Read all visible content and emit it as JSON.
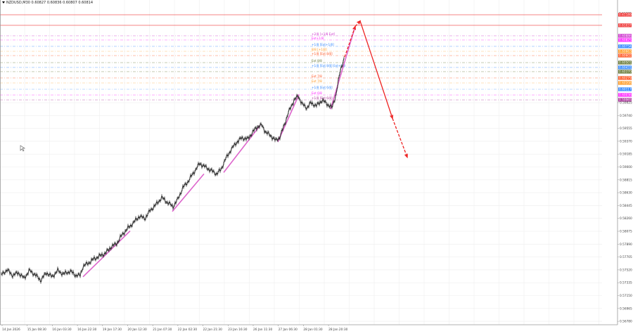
{
  "window": {
    "symbol_line": "NZDUSD,M30  0.60827 0.60836 0.60807 0.60814"
  },
  "colors": {
    "candle": "#222222",
    "grid": "#eeeeee",
    "axis": "#999999",
    "trend_purple": "#dd66cc",
    "arrow_red": "#ee2222"
  },
  "chart_data": {
    "type": "candlestick",
    "title": "NZDUSD,M30",
    "symbol": "NZDUSD",
    "timeframe": "M30",
    "ohlc_header": {
      "open": 0.60827,
      "high": 0.60836,
      "low": 0.60807,
      "close": 0.60814
    },
    "ylim": [
      0.5669,
      0.6125
    ],
    "y_ticks": [
      "0.59925",
      "0.59740",
      "0.59555",
      "0.59370",
      "0.59185",
      "0.59000",
      "0.58815",
      "0.58630",
      "0.58445",
      "0.58260",
      "0.58075",
      "0.57890",
      "0.57705",
      "0.57520",
      "0.57335",
      "0.57150",
      "0.56965",
      "0.56780"
    ],
    "x_ticks": [
      "14 Jan 2026",
      "15 Jan 08:30",
      "16 Jan 03:30",
      "16 Jan 22:30",
      "19 Jan 17:30",
      "20 Jan 12:30",
      "21 Jan 07:30",
      "22 Jan 02:30",
      "22 Jan 21:30",
      "23 Jan 16:30",
      "26 Jan 11:30",
      "27 Jan 06:30",
      "28 Jan 01:30",
      "28 Jan 20:30"
    ],
    "price_path": [
      [
        2,
        0.5745
      ],
      [
        10,
        0.5752
      ],
      [
        18,
        0.5744
      ],
      [
        26,
        0.5748
      ],
      [
        34,
        0.574
      ],
      [
        42,
        0.5751
      ],
      [
        50,
        0.5745
      ],
      [
        58,
        0.5737
      ],
      [
        66,
        0.5748
      ],
      [
        74,
        0.5742
      ],
      [
        82,
        0.5751
      ],
      [
        90,
        0.5746
      ],
      [
        100,
        0.575
      ],
      [
        108,
        0.5744
      ],
      [
        114,
        0.5744
      ],
      [
        118,
        0.5757
      ],
      [
        126,
        0.5762
      ],
      [
        134,
        0.5768
      ],
      [
        142,
        0.5772
      ],
      [
        150,
        0.5776
      ],
      [
        158,
        0.5785
      ],
      [
        166,
        0.579
      ],
      [
        174,
        0.5803
      ],
      [
        182,
        0.5812
      ],
      [
        190,
        0.582
      ],
      [
        198,
        0.5829
      ],
      [
        206,
        0.5826
      ],
      [
        214,
        0.5838
      ],
      [
        222,
        0.5846
      ],
      [
        230,
        0.5856
      ],
      [
        238,
        0.5849
      ],
      [
        246,
        0.5843
      ],
      [
        252,
        0.5852
      ],
      [
        260,
        0.587
      ],
      [
        268,
        0.588
      ],
      [
        276,
        0.5893
      ],
      [
        284,
        0.5905
      ],
      [
        292,
        0.59
      ],
      [
        300,
        0.5895
      ],
      [
        308,
        0.589
      ],
      [
        314,
        0.5896
      ],
      [
        320,
        0.591
      ],
      [
        328,
        0.5924
      ],
      [
        336,
        0.5935
      ],
      [
        344,
        0.5942
      ],
      [
        352,
        0.594
      ],
      [
        360,
        0.5951
      ],
      [
        366,
        0.5958
      ],
      [
        372,
        0.596
      ],
      [
        378,
        0.595
      ],
      [
        386,
        0.5944
      ],
      [
        392,
        0.5938
      ],
      [
        398,
        0.5943
      ],
      [
        404,
        0.596
      ],
      [
        410,
        0.5978
      ],
      [
        418,
        0.5996
      ],
      [
        424,
        0.6002
      ],
      [
        430,
        0.599
      ],
      [
        436,
        0.5985
      ],
      [
        442,
        0.5992
      ],
      [
        450,
        0.5988
      ],
      [
        458,
        0.5996
      ],
      [
        466,
        0.599
      ],
      [
        472,
        0.5985
      ],
      [
        478,
        0.6005
      ],
      [
        484,
        0.604
      ],
      [
        490,
        0.6058
      ]
    ],
    "trendlines": [
      {
        "from": [
          118,
          0.5742
        ],
        "to": [
          185,
          0.5808
        ]
      },
      {
        "from": [
          245,
          0.5836
        ],
        "to": [
          290,
          0.589
        ]
      },
      {
        "from": [
          318,
          0.5892
        ],
        "to": [
          370,
          0.596
        ]
      },
      {
        "from": [
          395,
          0.5936
        ],
        "to": [
          425,
          0.6004
        ]
      },
      {
        "from": [
          470,
          0.5983
        ],
        "to": [
          505,
          0.6102
        ]
      }
    ],
    "forecast_arrow": {
      "points": [
        [
          490,
          0.6058
        ],
        [
          505,
          0.6102
        ],
        [
          512,
          0.611
        ],
        [
          558,
          0.597
        ],
        [
          579,
          0.5914
        ]
      ],
      "segments": [
        "dashed",
        "dashed",
        "solid",
        "dashed"
      ],
      "color": "#ee2222"
    },
    "levels": [
      {
        "price": "0.61209",
        "color": "#aaaaaa",
        "style": "tick",
        "label": ""
      },
      {
        "price": "0.61189",
        "color": "#ee3333",
        "style": "solid",
        "label": ""
      },
      {
        "price": "0.61037",
        "color": "#ee3333",
        "style": "solid",
        "label": ""
      },
      {
        "price": "0.60886",
        "color": "#cc33cc",
        "style": "dashdot",
        "label": "+2/8 [+1/8 Ext]"
      },
      {
        "price": "0.60825",
        "color": "#ff22ff",
        "style": "dashdot",
        "label": "Ext+1/8"
      },
      {
        "price": "0.60734",
        "color": "#3388ff",
        "style": "dashdot",
        "label": "+1/8 [Ext+1/8]"
      },
      {
        "price": "0.60663",
        "color": "#ff9922",
        "style": "dashdot",
        "label": "8/8 [+1/8]"
      },
      {
        "price": "0.60602",
        "color": "#ff5522",
        "style": "dashdot",
        "label": "+1/8 [Ext 8/8]"
      },
      {
        "price": "0.60501",
        "color": "#667733",
        "style": "dashdot",
        "label": "Ext 8/8"
      },
      {
        "price": "0.60431",
        "color": "#3388ff",
        "style": "dashdot",
        "label": "+1/8 [Ext 8/8] Ext+1/8"
      },
      {
        "price": "0.60370",
        "color": "#667733",
        "style": "dashdot",
        "label": ""
      },
      {
        "price": "0.60279",
        "color": "#ff5522",
        "style": "dashdot",
        "label": "Ext 7/8"
      },
      {
        "price": "0.60208",
        "color": "#ff9922",
        "style": "dashdot",
        "label": "Ext 7/8"
      },
      {
        "price": "0.60117",
        "color": "#3388ff",
        "style": "dashdot",
        "label": "+1/8 [Ext 6/8]"
      },
      {
        "price": "0.60036",
        "color": "#ff22ff",
        "style": "dashdot",
        "label": "Ext 6/8"
      },
      {
        "price": "0.59965",
        "color": "#aa3399",
        "style": "dashdot",
        "label": "+1/8 [Ext 6/8]"
      }
    ],
    "grid": true,
    "legend": "none"
  }
}
